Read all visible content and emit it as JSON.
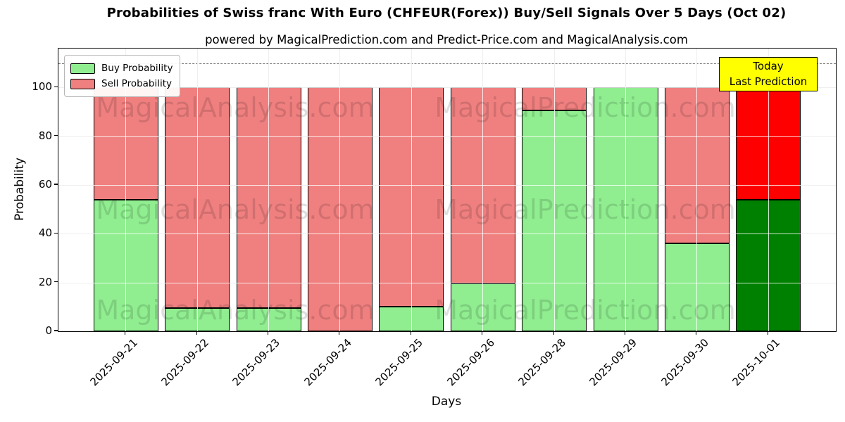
{
  "title": "Probabilities of Swiss franc With Euro (CHFEUR(Forex)) Buy/Sell Signals Over 5 Days (Oct 02)",
  "subtitle": "powered by MagicalPrediction.com and Predict-Price.com and MagicalAnalysis.com",
  "watermarks": {
    "left_text": "MagicalAnalysis.com",
    "right_text": "MagicalPrediction.com"
  },
  "legend": {
    "items": [
      {
        "label": "Buy Probability",
        "color": "#90ee90"
      },
      {
        "label": "Sell Probability",
        "color": "#f08080"
      }
    ]
  },
  "annotation_box": {
    "line1": "Today",
    "line2": "Last Prediction",
    "bg_color": "#ffff00"
  },
  "axes": {
    "ylabel": "Probability",
    "xlabel": "Days",
    "yticks": [
      0,
      20,
      40,
      60,
      80,
      100
    ],
    "ylim": [
      0,
      116
    ],
    "dashed_line_y": 110,
    "grid_color": "#b0b0b0",
    "grid_over_bars_color": "rgba(255,255,255,0.8)"
  },
  "chart_data": {
    "type": "bar",
    "stacked": true,
    "title": "Probabilities of Swiss franc With Euro (CHFEUR(Forex)) Buy/Sell Signals Over 5 Days (Oct 02)",
    "xlabel": "Days",
    "ylabel": "Probability",
    "ylim": [
      0,
      116
    ],
    "grid": true,
    "legend_position": "upper left",
    "categories": [
      "2025-09-21",
      "2025-09-22",
      "2025-09-23",
      "2025-09-24",
      "2025-09-25",
      "2025-09-26",
      "2025-09-28",
      "2025-09-29",
      "2025-09-30",
      "2025-10-01"
    ],
    "series": [
      {
        "name": "Buy Probability",
        "values": [
          54,
          9.5,
          9.5,
          0,
          10,
          19.5,
          90.5,
          100,
          36,
          54
        ],
        "color": "#90ee90",
        "today_color": "#008000"
      },
      {
        "name": "Sell Probability",
        "values": [
          46,
          90.5,
          90.5,
          100,
          90,
          80.5,
          9.5,
          0,
          64,
          46
        ],
        "color": "#f08080",
        "today_color": "#ff0000"
      }
    ],
    "today_column": "2025-10-01",
    "edge_color": "#000000"
  }
}
